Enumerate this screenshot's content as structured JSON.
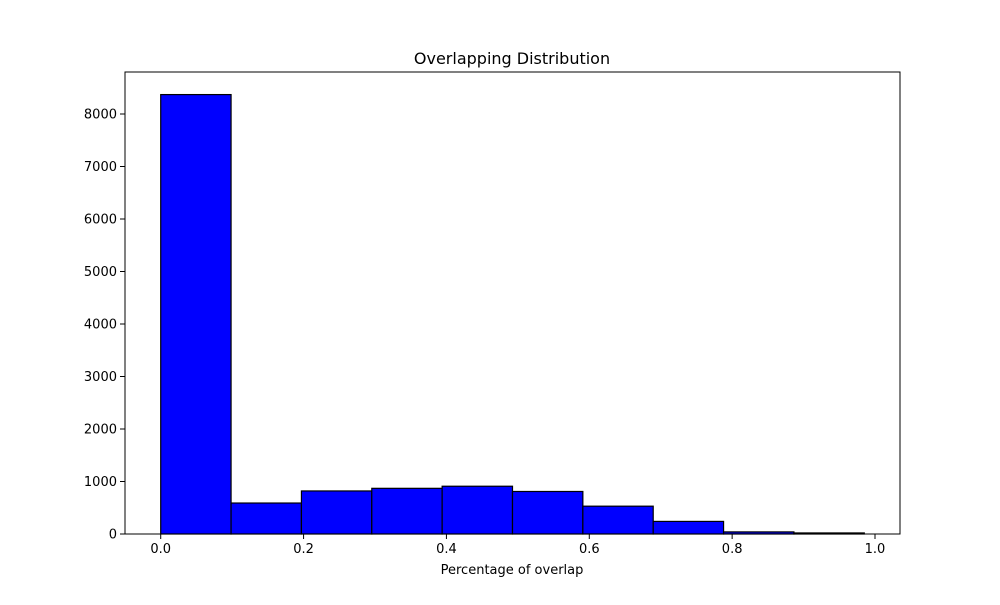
{
  "chart_data": {
    "type": "bar",
    "title": "Overlapping Distribution",
    "xlabel": "Percentage of overlap",
    "ylabel": "",
    "bin_edges": [
      0.0,
      0.0985,
      0.197,
      0.2955,
      0.394,
      0.4925,
      0.591,
      0.6895,
      0.788,
      0.8865,
      0.985
    ],
    "values": [
      8370,
      590,
      820,
      870,
      910,
      810,
      530,
      240,
      40,
      20
    ],
    "xlim": [
      -0.05,
      1.035
    ],
    "ylim": [
      0,
      8800
    ],
    "xticks": [
      0.0,
      0.2,
      0.4,
      0.6,
      0.8,
      1.0
    ],
    "xtick_labels": [
      "0.0",
      "0.2",
      "0.4",
      "0.6",
      "0.8",
      "1.0"
    ],
    "yticks": [
      0,
      1000,
      2000,
      3000,
      4000,
      5000,
      6000,
      7000,
      8000
    ],
    "ytick_labels": [
      "0",
      "1000",
      "2000",
      "3000",
      "4000",
      "5000",
      "6000",
      "7000",
      "8000"
    ],
    "bar_color": "#0000ff",
    "edge_color": "#000000",
    "grid": false,
    "legend": false
  }
}
